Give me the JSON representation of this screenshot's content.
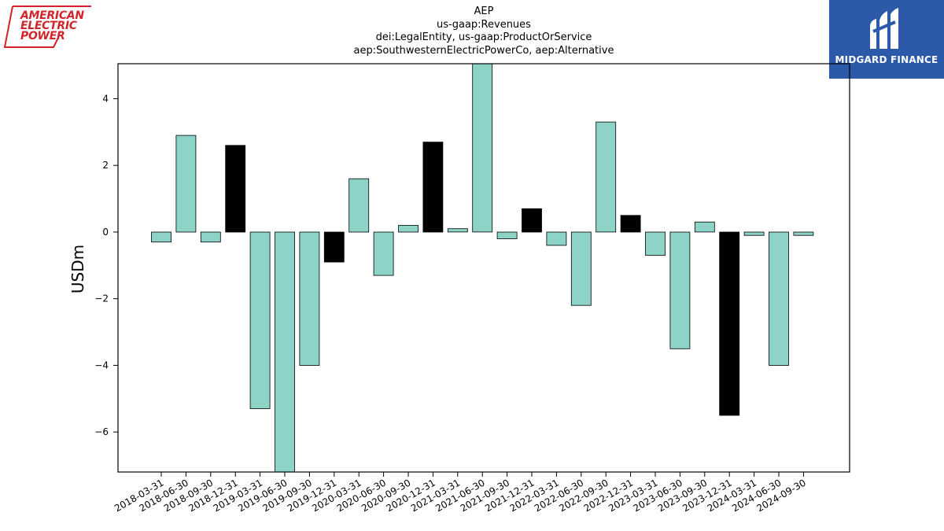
{
  "logos": {
    "left": [
      "AMERICAN",
      "ELECTRIC",
      "POWER"
    ],
    "right": "MIDGARD FINANCE"
  },
  "colors": {
    "bar_default": "#8dd3c7",
    "bar_highlight": "#000000",
    "aep_red": "#d0262b",
    "midgard_blue": "#2d5aa8"
  },
  "chart_data": {
    "type": "bar",
    "title": [
      "AEP",
      "us-gaap:Revenues",
      "dei:LegalEntity, us-gaap:ProductOrService",
      "aep:SouthwesternElectricPowerCo, aep:Alternative"
    ],
    "xlabel": "",
    "ylabel": "USDm",
    "ylim": [
      -7.2,
      5.05
    ],
    "yticks": [
      -6,
      -4,
      -2,
      0,
      2,
      4
    ],
    "grid": false,
    "categories": [
      "2018-03-31",
      "2018-06-30",
      "2018-09-30",
      "2018-12-31",
      "2019-03-31",
      "2019-06-30",
      "2019-09-30",
      "2019-12-31",
      "2020-03-31",
      "2020-06-30",
      "2020-09-30",
      "2020-12-31",
      "2021-03-31",
      "2021-06-30",
      "2021-09-30",
      "2021-12-31",
      "2022-03-31",
      "2022-06-30",
      "2022-09-30",
      "2022-12-31",
      "2023-03-31",
      "2023-06-30",
      "2023-09-30",
      "2023-12-31",
      "2024-03-31",
      "2024-06-30",
      "2024-09-30"
    ],
    "values": [
      -0.3,
      2.9,
      -0.3,
      2.6,
      -5.3,
      -7.3,
      -4.0,
      -0.9,
      1.6,
      -1.3,
      0.2,
      2.7,
      0.1,
      5.5,
      -0.2,
      0.7,
      -0.4,
      -2.2,
      3.3,
      0.5,
      -0.7,
      -3.5,
      0.3,
      -5.5,
      -0.1,
      -4.0,
      -0.1
    ],
    "highlight": [
      false,
      false,
      false,
      true,
      false,
      false,
      false,
      true,
      false,
      false,
      false,
      true,
      false,
      false,
      false,
      true,
      false,
      false,
      false,
      true,
      false,
      false,
      false,
      true,
      false,
      false,
      false
    ]
  }
}
